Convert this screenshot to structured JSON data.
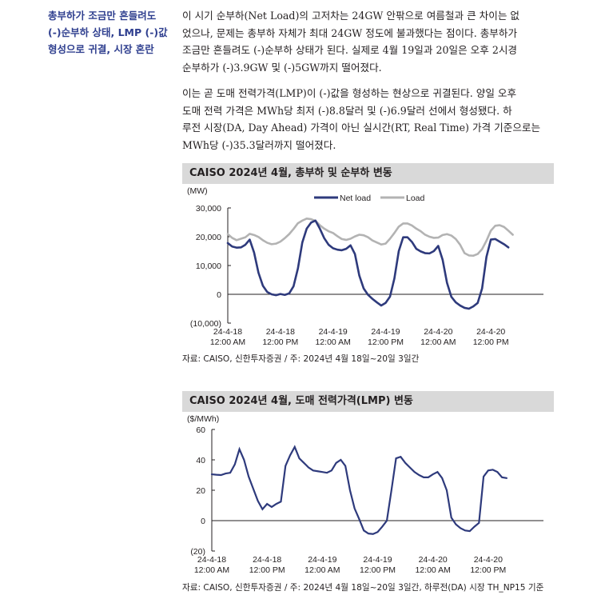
{
  "sidenote": {
    "lines": [
      "총부하가 조금만 흔들려도",
      "(-)순부하 상태, LMP (-)값",
      "형성으로 귀결, 시장 혼란"
    ]
  },
  "paragraphs": [
    {
      "lines": [
        "이 시기 순부하(Net Load)의 고저차는 24GW 안팎으로 여름철과 큰 차이는 없",
        "었으나, 문제는 총부하 자체가 최대 24GW 정도에 불과했다는 점이다. 총부하가",
        "조금만 흔들려도 (-)순부하 상태가 된다. 실제로 4월 19일과 20일은 오후 2시경",
        "순부하가 (-)3.9GW 및 (-)5GW까지 떨어졌다."
      ]
    },
    {
      "lines": [
        "이는 곧 도매 전력가격(LMP)이 (-)값을 형성하는 현상으로 귀결된다. 양일 오후",
        "도매 전력 가격은 MWh당 최저 (-)8.8달러 및 (-)6.9달러 선에서 형성됐다. 하",
        "루전 시장(DA, Day Ahead) 가격이 아닌 실시간(RT, Real Time) 가격 기준으로는",
        "MWh당 (-)35.3달러까지 떨어졌다."
      ]
    }
  ],
  "charts": {
    "load": {
      "title": "CAISO 2024년 4월, 총부하 및 순부하 변동",
      "source": "자료: CAISO, 신한투자증권 / 주: 2024년 4월 18일~20일 3일간",
      "colors": {
        "net_load": "#2e3a7c",
        "load": "#b3b3b3"
      }
    },
    "lmp": {
      "title": "CAISO 2024년 4월, 도매 전력가격(LMP) 변동",
      "source": "자료: CAISO, 신한투자증권 / 주: 2024년 4월 18일~20일 3일간, 하루전(DA) 시장 TH_NP15 기준",
      "colors": {
        "lmp": "#2e3a7c"
      }
    }
  },
  "chart_data": [
    {
      "type": "line",
      "title": "CAISO 2024년 4월, 총부하 및 순부하 변동",
      "ylabel": "(MW)",
      "ylim": [
        -10000,
        30000
      ],
      "yticks": [
        "30,000",
        "20,000",
        "10,000",
        "0",
        "(10,000)"
      ],
      "ytick_values": [
        30000,
        20000,
        10000,
        0,
        -10000
      ],
      "xlabel": "",
      "xticks": [
        [
          "24-4-18",
          "12:00 AM"
        ],
        [
          "24-4-18",
          "12:00 PM"
        ],
        [
          "24-4-19",
          "12:00 AM"
        ],
        [
          "24-4-19",
          "12:00 PM"
        ],
        [
          "24-4-20",
          "12:00 AM"
        ],
        [
          "24-4-20",
          "12:00 PM"
        ]
      ],
      "xtick_hours": [
        0,
        12,
        24,
        36,
        48,
        60
      ],
      "xlim_hours": [
        0,
        72
      ],
      "legend": {
        "position": "top",
        "entries": [
          "Net load",
          "Load"
        ]
      },
      "grid": false,
      "x_hours": [
        0,
        1,
        2,
        3,
        4,
        5,
        6,
        7,
        8,
        9,
        10,
        11,
        12,
        13,
        14,
        15,
        16,
        17,
        18,
        19,
        20,
        21,
        22,
        23,
        24,
        25,
        26,
        27,
        28,
        29,
        30,
        31,
        32,
        33,
        34,
        35,
        36,
        37,
        38,
        39,
        40,
        41,
        42,
        43,
        44,
        45,
        46,
        47,
        48,
        49,
        50,
        51,
        52,
        53,
        54,
        55,
        56,
        57,
        58,
        59,
        60,
        61,
        62,
        63,
        64,
        65,
        66,
        67,
        68,
        69,
        70,
        71,
        72
      ],
      "series": [
        {
          "name": "Net load",
          "values": [
            17800,
            16600,
            16200,
            16300,
            17200,
            19000,
            14500,
            7500,
            3000,
            800,
            0,
            -300,
            100,
            -200,
            300,
            2800,
            9000,
            18000,
            22800,
            24900,
            25600,
            22800,
            19500,
            17200,
            16000,
            15500,
            15300,
            15800,
            17000,
            14000,
            6500,
            2000,
            -200,
            -1600,
            -2800,
            -3900,
            -3000,
            -800,
            5500,
            15000,
            19800,
            19800,
            18200,
            15800,
            14900,
            14300,
            14200,
            15000,
            16800,
            12000,
            4000,
            -900,
            -2800,
            -3900,
            -4700,
            -5000,
            -4200,
            -3000,
            2000,
            13000,
            19000,
            19200,
            18300,
            17400,
            16300,
            null,
            null,
            null,
            null,
            null,
            null,
            null,
            null
          ]
        },
        {
          "name": "Load",
          "values": [
            20900,
            19600,
            18800,
            19300,
            19800,
            21000,
            20600,
            19900,
            18800,
            17900,
            17400,
            17600,
            18300,
            19500,
            20900,
            22700,
            24700,
            25600,
            26300,
            26100,
            25500,
            24000,
            22800,
            21900,
            21300,
            20200,
            19200,
            18900,
            19300,
            20100,
            20700,
            20500,
            19800,
            18700,
            18000,
            17300,
            17600,
            19300,
            21300,
            23500,
            24600,
            24600,
            23900,
            22800,
            21900,
            20700,
            20000,
            19600,
            19700,
            20600,
            20900,
            20400,
            19200,
            17200,
            14300,
            13500,
            13400,
            14000,
            15700,
            18600,
            22100,
            23800,
            24000,
            23400,
            22100,
            20700,
            null,
            null,
            null,
            null,
            null,
            null,
            null
          ]
        }
      ]
    },
    {
      "type": "line",
      "title": "CAISO 2024년 4월, 도매 전력가격(LMP) 변동",
      "ylabel": "($/MWh)",
      "ylim": [
        -20,
        60
      ],
      "yticks": [
        "60",
        "40",
        "20",
        "0",
        "(20)"
      ],
      "ytick_values": [
        60,
        40,
        20,
        0,
        -20
      ],
      "xticks": [
        [
          "24-4-18",
          "12:00 AM"
        ],
        [
          "24-4-18",
          "12:00 PM"
        ],
        [
          "24-4-19",
          "12:00 AM"
        ],
        [
          "24-4-19",
          "12:00 PM"
        ],
        [
          "24-4-20",
          "12:00 AM"
        ],
        [
          "24-4-20",
          "12:00 PM"
        ]
      ],
      "xtick_hours": [
        0,
        12,
        24,
        36,
        48,
        60
      ],
      "xlim_hours": [
        0,
        72
      ],
      "grid": false,
      "x_hours": [
        0,
        1,
        2,
        3,
        4,
        5,
        6,
        7,
        8,
        9,
        10,
        11,
        12,
        13,
        14,
        15,
        16,
        17,
        18,
        19,
        20,
        21,
        22,
        23,
        24,
        25,
        26,
        27,
        28,
        29,
        30,
        31,
        32,
        33,
        34,
        35,
        36,
        37,
        38,
        39,
        40,
        41,
        42,
        43,
        44,
        45,
        46,
        47,
        48,
        49,
        50,
        51,
        52,
        53,
        54,
        55,
        56,
        57,
        58,
        59,
        60,
        61,
        62,
        63,
        64,
        65,
        66,
        67,
        68,
        69,
        70,
        71,
        72
      ],
      "series": [
        {
          "name": "LMP",
          "values": [
            30.5,
            30.2,
            30.0,
            31.0,
            31.5,
            37.0,
            47.0,
            40.0,
            29.0,
            21.0,
            13.0,
            7.5,
            11.0,
            9.0,
            11.0,
            12.5,
            36.0,
            43.0,
            48.5,
            41.0,
            38.0,
            35.0,
            33.0,
            32.5,
            32.0,
            31.5,
            33.0,
            38.0,
            40.0,
            36.0,
            20.0,
            8.0,
            1.0,
            -6.5,
            -8.5,
            -8.8,
            -7.5,
            -4.0,
            0.0,
            20.0,
            41.0,
            42.0,
            38.0,
            35.0,
            32.0,
            30.0,
            28.5,
            28.5,
            30.5,
            32.0,
            28.0,
            20.0,
            2.0,
            -2.5,
            -5.0,
            -6.5,
            -6.9,
            -4.0,
            -1.5,
            29.0,
            33.0,
            33.5,
            32.0,
            28.5,
            28.0,
            null,
            null,
            null,
            null,
            null,
            null,
            null,
            null
          ]
        }
      ]
    }
  ]
}
